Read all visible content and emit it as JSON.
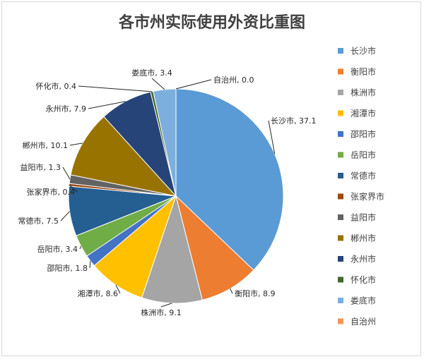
{
  "chart_data": {
    "type": "pie",
    "title": "各市州实际使用外资比重图",
    "categories": [
      "长沙市",
      "衡阳市",
      "株洲市",
      "湘潭市",
      "邵阳市",
      "岳阳市",
      "常德市",
      "张家界市",
      "益阳市",
      "郴州市",
      "永州市",
      "怀化市",
      "娄底市",
      "自治州"
    ],
    "values": [
      37.1,
      8.9,
      9.1,
      8.6,
      1.8,
      3.4,
      7.5,
      0.4,
      1.3,
      10.1,
      7.9,
      0.4,
      3.4,
      0.0
    ],
    "data_labels": [
      "长沙市, 37.1",
      "衡阳市, 8.9",
      "株洲市, 9.1",
      "湘潭市, 8.6",
      "邵阳市, 1.8",
      "岳阳市, 3.4",
      "常德市, 7.5",
      "张家界市, 0.4",
      "益阳市, 1.3",
      "郴州市, 10.1",
      "永州市, 7.9",
      "怀化市, 0.4",
      "娄底市, 3.4",
      "自治州, 0.0"
    ],
    "colors": [
      "#5b9bd5",
      "#ed7d31",
      "#a5a5a5",
      "#ffc000",
      "#4472c4",
      "#70ad47",
      "#255e91",
      "#9e480e",
      "#636363",
      "#997300",
      "#264478",
      "#43682b",
      "#7cafdd",
      "#f1975a"
    ],
    "legend_position": "right"
  }
}
